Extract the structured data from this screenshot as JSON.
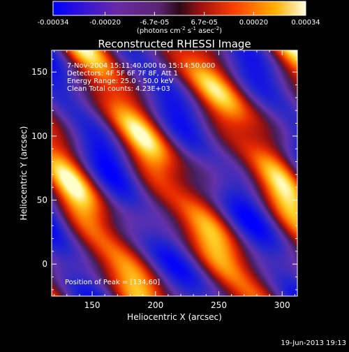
{
  "chart_data": {
    "type": "heatmap",
    "title": "Reconstructed RHESSI Image",
    "xlabel": "Heliocentric X (arcsec)",
    "ylabel": "Heliocentric Y (arcsec)",
    "x_ticks": [
      150,
      200,
      250,
      300
    ],
    "y_ticks": [
      0,
      50,
      100,
      150
    ],
    "xlim": [
      118,
      312
    ],
    "ylim": [
      -25,
      167
    ],
    "colorbar": {
      "tick_labels": [
        "-0.00034",
        "-0.00020",
        "-6.7e-05",
        "6.7e-05",
        "0.00020",
        "0.00034"
      ],
      "range": [
        -0.00034,
        0.00034
      ],
      "units": "(photons cm",
      "units_sup1": "-2",
      "units_mid": " s",
      "units_sup2": "-1",
      "units_mid2": " asec",
      "units_sup3": "-2",
      "units_end": ")"
    },
    "annotations": [
      "7-Nov-2004 15:11:40.000 to 15:14:50.000",
      "Detectors: 4F 5F 6F 7F 8F, Att 1",
      "Energy Range: 25.0 - 50.0 keV",
      "Clean     Total counts: 4.23E+03"
    ],
    "peak_label": "Position of Peak = [134,60]",
    "peak": [
      134,
      60
    ],
    "footer_date": "19-Jun-2013 19:13",
    "bright_ridges": [
      {
        "x": 134,
        "y": 60,
        "dir": [
          0.55,
          -0.83
        ]
      },
      {
        "x": 200,
        "y": 110,
        "dir": [
          0.55,
          -0.83
        ]
      },
      {
        "x": 265,
        "y": 140,
        "dir": [
          0.55,
          -0.83
        ]
      }
    ]
  }
}
